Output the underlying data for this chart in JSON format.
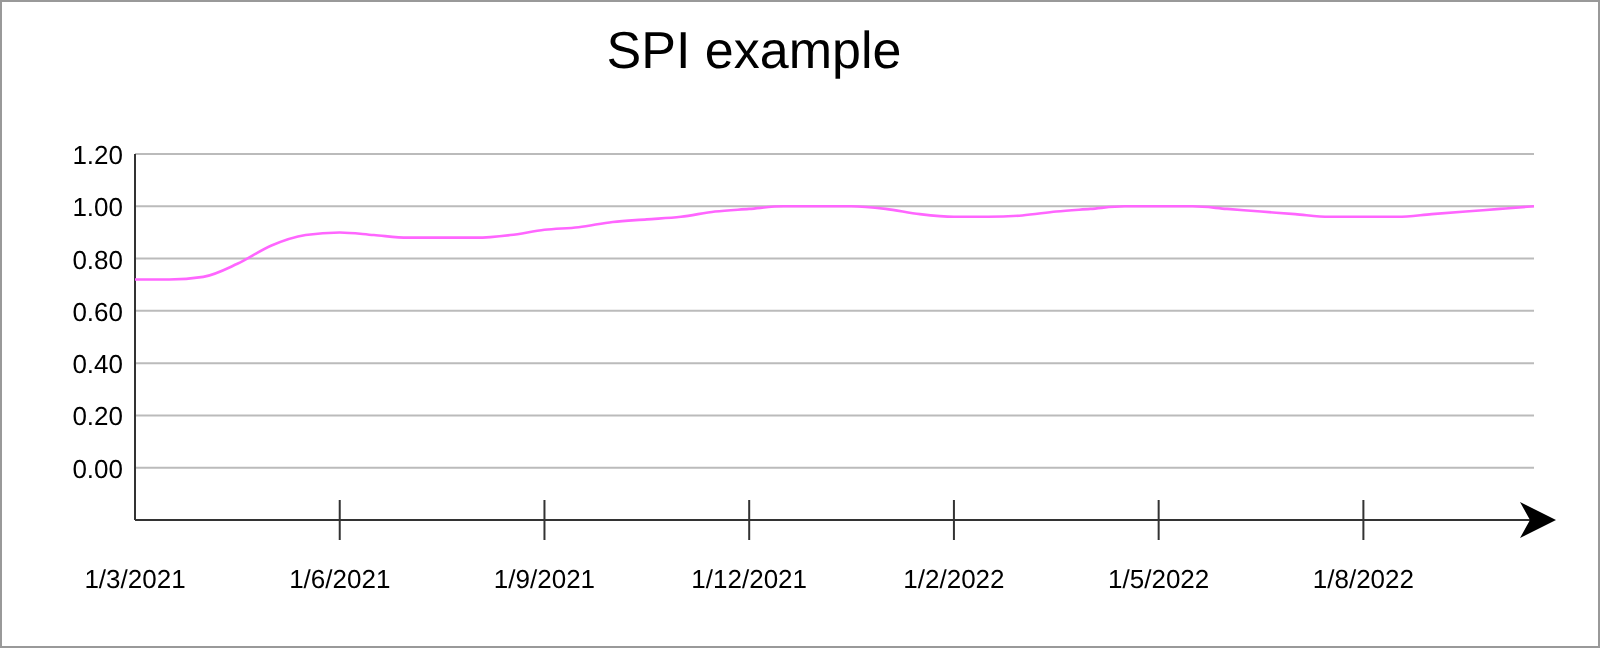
{
  "chart_data": {
    "type": "line",
    "title": "SPI example",
    "categories": [
      "1/3/2021",
      null,
      null,
      null,
      null,
      null,
      "1/6/2021",
      null,
      null,
      null,
      null,
      null,
      "1/9/2021",
      null,
      null,
      null,
      null,
      null,
      "1/12/2021",
      null,
      null,
      null,
      null,
      null,
      "1/2/2022",
      null,
      null,
      null,
      null,
      null,
      "1/5/2022",
      null,
      null,
      null,
      null,
      null,
      "1/8/2022",
      null,
      null,
      null,
      null,
      null
    ],
    "series": [
      {
        "color": "#ff66ff",
        "values": [
          0.72,
          0.72,
          0.73,
          0.78,
          0.85,
          0.89,
          0.9,
          0.89,
          0.88,
          0.88,
          0.88,
          0.89,
          0.91,
          0.92,
          0.94,
          0.95,
          0.96,
          0.98,
          0.99,
          1.0,
          1.0,
          1.0,
          0.99,
          0.97,
          0.96,
          0.96,
          0.965,
          0.98,
          0.99,
          1.0,
          1.0,
          1.0,
          0.99,
          0.98,
          0.97,
          0.96,
          0.96,
          0.96,
          0.97,
          0.98,
          0.99,
          1.0
        ]
      }
    ],
    "ylim": [
      -0.2,
      1.2
    ],
    "yticks": [
      {
        "value": 0,
        "label": "0.00"
      },
      {
        "value": 0.2,
        "label": "0.20"
      },
      {
        "value": 0.4,
        "label": "0.40"
      },
      {
        "value": 0.6,
        "label": "0.60"
      },
      {
        "value": 0.8,
        "label": "0.80"
      },
      {
        "value": 1,
        "label": "1.00"
      },
      {
        "value": 1.2,
        "label": "1.20"
      }
    ],
    "grid": "y",
    "line_style": "solid"
  }
}
